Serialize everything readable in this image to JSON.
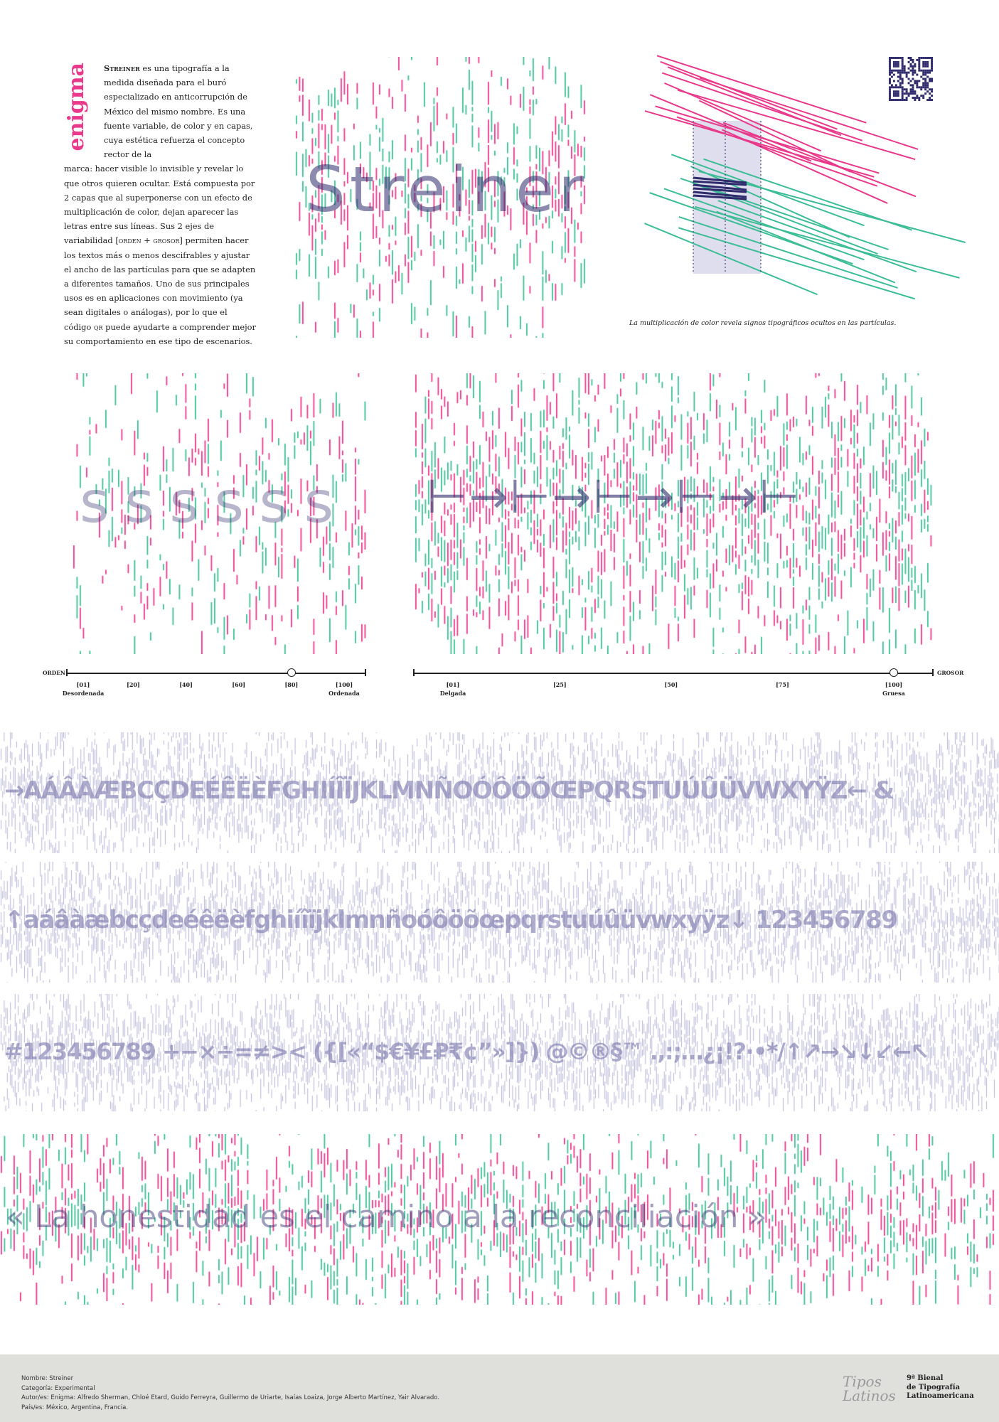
{
  "colors": {
    "pink": "#e8398a",
    "green": "#3dbd95",
    "navy": "#2e2a6b",
    "lavender": "#b6b4d4",
    "footer_bg": "#dfe0dc"
  },
  "brand": {
    "enigma": "enigma"
  },
  "intro": {
    "name": "Streiner",
    "p1": "es una tipografía a la medida diseñada para el buró especializado en anticorrupción de México del mismo nombre. Es una fuente variable, de color y en capas, cuya estética refuerza el concepto rector de la",
    "p2": "marca: hacer visible lo invisible y revelar lo que otros quieren ocultar. Está compuesta por 2 capas que al superponerse con un efecto de multiplicación de color, dejan aparecer las letras entre sus líneas. Sus 2 ejes de variabilidad",
    "axes": "[orden + grosor]",
    "p3": "permiten hacer los textos más o menos descifrables y ajustar el ancho de las partículas para que se adapten a diferentes tamaños. Uno de sus principales usos es en aplicaciones con movimiento (ya sean digitales o análogas), por lo que el código",
    "qr": "qr",
    "p4": "puede ayudarte a comprender mejor su comportamiento en ese tipo de escenarios."
  },
  "hero": {
    "word": "Streiner"
  },
  "diagram": {
    "caption": "La multiplicación de color revela signos tipográficos ocultos en las partículas.",
    "glyph": "a",
    "qr_icon": "qr-code-icon"
  },
  "samples": {
    "orden_glyphs": "s s s s s s",
    "grosor_glyphs": "⊢→⊢→⊢→⊢→⊢"
  },
  "slider_orden": {
    "name": "ORDEN",
    "value": 80,
    "ticks": [
      "[01]",
      "[20]",
      "[40]",
      "[60]",
      "[80]",
      "[100]"
    ],
    "min_label": "Desordenada",
    "max_label": "Ordenada"
  },
  "slider_grosor": {
    "name": "GROSOR",
    "value": 100,
    "ticks": [
      "[01]",
      "[25]",
      "[50]",
      "[75]",
      "[100]"
    ],
    "min_label": "Delgada",
    "max_label": "Gruesa"
  },
  "rows": [
    "→AÁÂÀÆBCÇDEÉÊËÈFGHIÍÎÏJKLMNÑOÓÔÖÕŒPQRSTUÚÛÜVWXYŸZ← &",
    "↑aáâàæbcçdeéêëèfghiíîïjklmnñoóôöõœpqrstuúûüvwxyÿz↓ 123456789",
    "#123456789 +−×÷=≠>< ({[«“$€¥£₽₹¢”»]}) @©®§™ .,:;…¿¡!?·•*/↑↗→↘↓↙←↖"
  ],
  "quote": "« La honestidad es el camino a la reconciliación »",
  "footer": {
    "nombre": "Nombre: Streiner",
    "categoria": "Categoría: Experimental",
    "autores": "Autor/es: Enigma: Alfredo Sherman, Chloé Etard, Guido Ferreyra, Guillermo de Uriarte, Isaías Loaiza, Jorge Alberto Martínez, Yair Alvarado.",
    "paises": "País/es: México, Argentina, Francia.",
    "logo_script": "Tipos Latinos",
    "logo_line1": "9ª Bienal",
    "logo_line2": "de Tipografía",
    "logo_line3": "Latinoamericana"
  }
}
